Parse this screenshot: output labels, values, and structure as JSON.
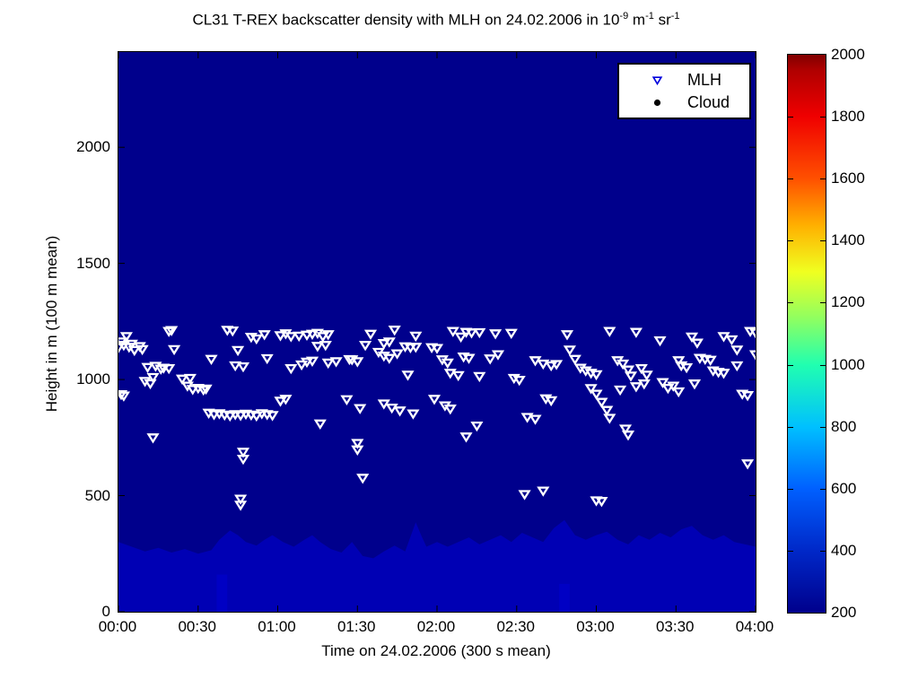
{
  "figure": {
    "background": "#ffffff",
    "plot_background": "#00008C",
    "marker_color_plot": "#ffffff",
    "mlh_legend_color": "#0000DD",
    "cloud_color": "#000000"
  },
  "title_segments": [
    {
      "text": "CL31 T-REX backscatter density with MLH on 24.02.2006 in 10"
    },
    {
      "sup": "-9"
    },
    {
      "text": " m"
    },
    {
      "sup": "-1"
    },
    {
      "text": " sr"
    },
    {
      "sup": "-1"
    }
  ],
  "legend": {
    "items": [
      {
        "label": "MLH",
        "marker": "open-down-triangle",
        "color": "#0000DD"
      },
      {
        "label": "Cloud",
        "marker": "filled-circle",
        "color": "#000000"
      }
    ]
  },
  "chart_data": {
    "type": "scatter",
    "title": "CL31 T-REX backscatter density with MLH on 24.02.2006 in 10^-9 m^-1 sr^-1",
    "xlabel": "Time on 24.02.2006 (300 s mean)",
    "ylabel": "Height in m (100 m mean)",
    "x_tick_labels": [
      "00:00",
      "00:30",
      "01:00",
      "01:30",
      "02:00",
      "02:30",
      "03:00",
      "03:30",
      "04:00"
    ],
    "x_tick_minutes": [
      0,
      30,
      60,
      90,
      120,
      150,
      180,
      210,
      240
    ],
    "x_range_minutes": [
      0,
      240
    ],
    "y_tick_values": [
      0,
      500,
      1000,
      1500,
      2000
    ],
    "ylim": [
      0,
      2410
    ],
    "grid": false,
    "legend_position": "top-right-inside",
    "background_field": {
      "description": "backscatter density image, nearly uniform minimum value",
      "base_color": "#00008C",
      "boundary_layer_color": "#0000B4",
      "boundary_layer_profile": [
        [
          0,
          300
        ],
        [
          5,
          280
        ],
        [
          10,
          260
        ],
        [
          15,
          275
        ],
        [
          20,
          255
        ],
        [
          25,
          270
        ],
        [
          30,
          250
        ],
        [
          35,
          265
        ],
        [
          38,
          310
        ],
        [
          42,
          350
        ],
        [
          45,
          330
        ],
        [
          48,
          300
        ],
        [
          52,
          285
        ],
        [
          55,
          310
        ],
        [
          58,
          330
        ],
        [
          62,
          300
        ],
        [
          66,
          280
        ],
        [
          70,
          310
        ],
        [
          73,
          330
        ],
        [
          76,
          300
        ],
        [
          80,
          270
        ],
        [
          84,
          255
        ],
        [
          88,
          300
        ],
        [
          92,
          240
        ],
        [
          96,
          230
        ],
        [
          100,
          260
        ],
        [
          104,
          285
        ],
        [
          108,
          260
        ],
        [
          112,
          385
        ],
        [
          114,
          330
        ],
        [
          116,
          280
        ],
        [
          120,
          300
        ],
        [
          124,
          280
        ],
        [
          128,
          300
        ],
        [
          132,
          320
        ],
        [
          136,
          290
        ],
        [
          140,
          310
        ],
        [
          144,
          330
        ],
        [
          148,
          300
        ],
        [
          152,
          340
        ],
        [
          156,
          320
        ],
        [
          160,
          300
        ],
        [
          164,
          360
        ],
        [
          168,
          395
        ],
        [
          172,
          330
        ],
        [
          176,
          310
        ],
        [
          180,
          330
        ],
        [
          184,
          345
        ],
        [
          188,
          310
        ],
        [
          192,
          290
        ],
        [
          196,
          330
        ],
        [
          200,
          310
        ],
        [
          204,
          340
        ],
        [
          208,
          320
        ],
        [
          212,
          355
        ],
        [
          216,
          370
        ],
        [
          220,
          330
        ],
        [
          224,
          310
        ],
        [
          228,
          330
        ],
        [
          232,
          300
        ],
        [
          236,
          290
        ],
        [
          240,
          280
        ]
      ],
      "bright_columns": [
        {
          "t0": 37,
          "t1": 41,
          "h": 160,
          "color": "#0000C4"
        },
        {
          "t0": 166,
          "t1": 170,
          "h": 120,
          "color": "#0000C4"
        }
      ]
    },
    "series": [
      {
        "name": "MLH",
        "marker": "open-down-triangle",
        "units": [
          "minutes after 00:00",
          "height m"
        ],
        "points": [
          [
            0,
            1140
          ],
          [
            1,
            1165
          ],
          [
            2,
            1150
          ],
          [
            3,
            1188
          ],
          [
            4,
            1142
          ],
          [
            5,
            1155
          ],
          [
            6,
            1128
          ],
          [
            8,
            1145
          ],
          [
            9,
            1132
          ],
          [
            1,
            938
          ],
          [
            2,
            932
          ],
          [
            10,
            995
          ],
          [
            11,
            1055
          ],
          [
            12,
            985
          ],
          [
            13,
            1012
          ],
          [
            14,
            1060
          ],
          [
            16,
            1048
          ],
          [
            17,
            1052
          ],
          [
            19,
            1050
          ],
          [
            19,
            1210
          ],
          [
            20,
            1214
          ],
          [
            21,
            1132
          ],
          [
            13,
            752
          ],
          [
            24,
            1005
          ],
          [
            26,
            975
          ],
          [
            27,
            1008
          ],
          [
            28,
            960
          ],
          [
            30,
            965
          ],
          [
            32,
            958
          ],
          [
            33,
            962
          ],
          [
            35,
            1090
          ],
          [
            34,
            858
          ],
          [
            36,
            852
          ],
          [
            38,
            856
          ],
          [
            40,
            850
          ],
          [
            42,
            846
          ],
          [
            44,
            852
          ],
          [
            46,
            848
          ],
          [
            48,
            854
          ],
          [
            50,
            850
          ],
          [
            52,
            846
          ],
          [
            54,
            856
          ],
          [
            56,
            852
          ],
          [
            58,
            848
          ],
          [
            41,
            1215
          ],
          [
            43,
            1212
          ],
          [
            44,
            1062
          ],
          [
            45,
            1128
          ],
          [
            47,
            1058
          ],
          [
            46,
            488
          ],
          [
            46,
            462
          ],
          [
            47,
            690
          ],
          [
            47,
            660
          ],
          [
            50,
            1185
          ],
          [
            52,
            1178
          ],
          [
            55,
            1196
          ],
          [
            56,
            1093
          ],
          [
            61,
            1192
          ],
          [
            63,
            1200
          ],
          [
            65,
            1188
          ],
          [
            68,
            1190
          ],
          [
            71,
            1194
          ],
          [
            73,
            1198
          ],
          [
            75,
            1202
          ],
          [
            77,
            1188
          ],
          [
            79,
            1196
          ],
          [
            75,
            1146
          ],
          [
            78,
            1150
          ],
          [
            61,
            910
          ],
          [
            63,
            918
          ],
          [
            65,
            1050
          ],
          [
            69,
            1066
          ],
          [
            71,
            1078
          ],
          [
            73,
            1082
          ],
          [
            79,
            1074
          ],
          [
            82,
            1080
          ],
          [
            76,
            812
          ],
          [
            86,
            916
          ],
          [
            88,
            1088
          ],
          [
            90,
            1080
          ],
          [
            91,
            878
          ],
          [
            90,
            728
          ],
          [
            90,
            700
          ],
          [
            92,
            578
          ],
          [
            95,
            1198
          ],
          [
            104,
            1216
          ],
          [
            112,
            1190
          ],
          [
            126,
            1210
          ],
          [
            129,
            1186
          ],
          [
            131,
            1206
          ],
          [
            133,
            1204
          ],
          [
            136,
            1205
          ],
          [
            142,
            1200
          ],
          [
            148,
            1202
          ],
          [
            93,
            1150
          ],
          [
            100,
            1158
          ],
          [
            102,
            1165
          ],
          [
            108,
            1144
          ],
          [
            110,
            1140
          ],
          [
            112,
            1142
          ],
          [
            118,
            1140
          ],
          [
            120,
            1137
          ],
          [
            98,
            1120
          ],
          [
            100,
            1104
          ],
          [
            102,
            1094
          ],
          [
            105,
            1114
          ],
          [
            87,
            1089
          ],
          [
            122,
            1088
          ],
          [
            124,
            1074
          ],
          [
            130,
            1100
          ],
          [
            132,
            1094
          ],
          [
            140,
            1092
          ],
          [
            143,
            1110
          ],
          [
            157,
            1084
          ],
          [
            160,
            1070
          ],
          [
            163,
            1062
          ],
          [
            165,
            1068
          ],
          [
            125,
            1030
          ],
          [
            128,
            1020
          ],
          [
            136,
            1016
          ],
          [
            109,
            1022
          ],
          [
            149,
            1008
          ],
          [
            151,
            1000
          ],
          [
            100,
            898
          ],
          [
            103,
            880
          ],
          [
            106,
            868
          ],
          [
            111,
            855
          ],
          [
            119,
            918
          ],
          [
            123,
            890
          ],
          [
            125,
            876
          ],
          [
            131,
            756
          ],
          [
            135,
            803
          ],
          [
            153,
            508
          ],
          [
            160,
            523
          ],
          [
            154,
            840
          ],
          [
            157,
            832
          ],
          [
            161,
            920
          ],
          [
            163,
            912
          ],
          [
            169,
            1196
          ],
          [
            170,
            1130
          ],
          [
            172,
            1090
          ],
          [
            174,
            1052
          ],
          [
            176,
            1040
          ],
          [
            178,
            1030
          ],
          [
            180,
            1024
          ],
          [
            178,
            964
          ],
          [
            180,
            940
          ],
          [
            182,
            905
          ],
          [
            184,
            870
          ],
          [
            185,
            836
          ],
          [
            180,
            481
          ],
          [
            182,
            478
          ],
          [
            185,
            1210
          ],
          [
            188,
            1084
          ],
          [
            190,
            1070
          ],
          [
            192,
            1044
          ],
          [
            193,
            1018
          ],
          [
            195,
            1206
          ],
          [
            197,
            1050
          ],
          [
            199,
            1022
          ],
          [
            189,
            958
          ],
          [
            195,
            972
          ],
          [
            198,
            984
          ],
          [
            191,
            790
          ],
          [
            192,
            764
          ],
          [
            204,
            1170
          ],
          [
            205,
            990
          ],
          [
            207,
            965
          ],
          [
            209,
            975
          ],
          [
            211,
            950
          ],
          [
            211,
            1084
          ],
          [
            212,
            1062
          ],
          [
            214,
            1054
          ],
          [
            216,
            1186
          ],
          [
            218,
            1160
          ],
          [
            217,
            984
          ],
          [
            219,
            1094
          ],
          [
            221,
            1090
          ],
          [
            223,
            1086
          ],
          [
            224,
            1040
          ],
          [
            226,
            1034
          ],
          [
            228,
            1030
          ],
          [
            228,
            1188
          ],
          [
            231,
            1174
          ],
          [
            233,
            1130
          ],
          [
            233,
            1062
          ],
          [
            235,
            940
          ],
          [
            237,
            934
          ],
          [
            237,
            640
          ],
          [
            238,
            1210
          ],
          [
            240,
            1204
          ],
          [
            240,
            1110
          ]
        ]
      },
      {
        "name": "Cloud",
        "marker": "filled-circle",
        "units": [
          "minutes after 00:00",
          "height m"
        ],
        "points": []
      }
    ],
    "colorbar": {
      "orientation": "vertical",
      "colormap": "jet",
      "range": [
        200,
        2000
      ],
      "tick_values": [
        200,
        400,
        600,
        800,
        1000,
        1200,
        1400,
        1600,
        1800,
        2000
      ],
      "stops": [
        {
          "v": 200,
          "color": "#00008C"
        },
        {
          "v": 400,
          "color": "#0028C8"
        },
        {
          "v": 600,
          "color": "#0060FF"
        },
        {
          "v": 800,
          "color": "#00C0FF"
        },
        {
          "v": 1000,
          "color": "#20FFB0"
        },
        {
          "v": 1150,
          "color": "#90FF60"
        },
        {
          "v": 1300,
          "color": "#F0FF20"
        },
        {
          "v": 1450,
          "color": "#FFB000"
        },
        {
          "v": 1600,
          "color": "#FF5000"
        },
        {
          "v": 1800,
          "color": "#F00000"
        },
        {
          "v": 1950,
          "color": "#B00000"
        },
        {
          "v": 2000,
          "color": "#800000"
        }
      ]
    }
  }
}
